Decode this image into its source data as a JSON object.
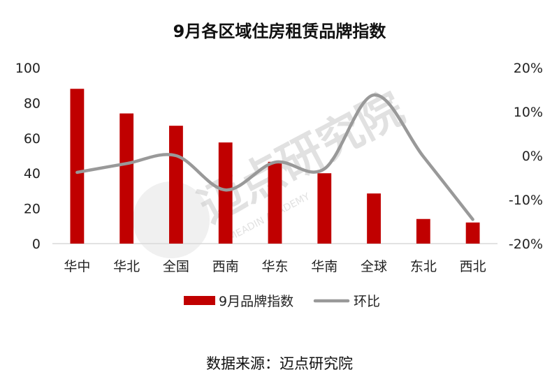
{
  "chart_data": {
    "type": "bar+line",
    "title": "9月各区域住房租赁品牌指数",
    "categories": [
      "华中",
      "华北",
      "全国",
      "西南",
      "华东",
      "华南",
      "全球",
      "东北",
      "西北"
    ],
    "series": [
      {
        "name": "9月品牌指数",
        "type": "bar",
        "axis": "left",
        "color": "#c00000",
        "values": [
          88,
          74,
          67,
          57.5,
          46.5,
          40,
          28.5,
          14,
          12
        ]
      },
      {
        "name": "环比",
        "type": "line",
        "axis": "right",
        "smooth": true,
        "color": "#999999",
        "values": [
          -3.8,
          -1.8,
          0,
          -7.8,
          -1.5,
          -3.0,
          13.8,
          -0.2,
          -14.5
        ]
      }
    ],
    "y_left": {
      "min": 0,
      "max": 100,
      "ticks": [
        "0",
        "20",
        "40",
        "60",
        "80",
        "100"
      ]
    },
    "y_right": {
      "min": -20,
      "max": 20,
      "ticks": [
        "-20%",
        "-10%",
        "0%",
        "10%",
        "20%"
      ]
    },
    "legend_placement": "bottom",
    "grid": false
  },
  "source_text": "数据来源：迈点研究院",
  "watermark": {
    "text": "迈点研究院",
    "subtext": "MEADIN ACADEMY"
  }
}
